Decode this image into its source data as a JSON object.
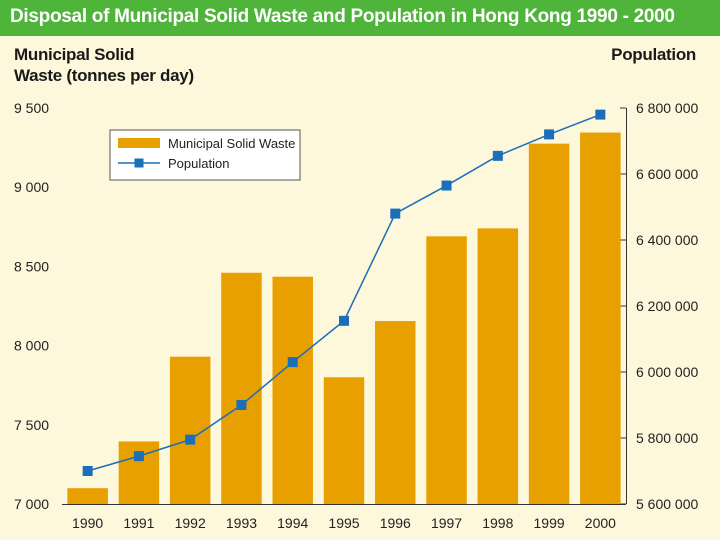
{
  "chart_data": {
    "type": "bar+line",
    "title": "Disposal of Municipal Solid Waste and Population in Hong Kong 1990 - 2000",
    "left_axis_title_line1": "Municipal Solid",
    "left_axis_title_line2": "Waste (tonnes per day)",
    "right_axis_title": "Population",
    "categories": [
      "1990",
      "1991",
      "1992",
      "1993",
      "1994",
      "1995",
      "1996",
      "1997",
      "1998",
      "1999",
      "2000"
    ],
    "series": [
      {
        "name": "Municipal Solid Waste",
        "type": "bar",
        "axis": "left",
        "color": "#e8a000",
        "values": [
          7100,
          7395,
          7930,
          8460,
          8435,
          7800,
          8155,
          8690,
          8740,
          9275,
          9345
        ]
      },
      {
        "name": "Population",
        "type": "line",
        "axis": "right",
        "color": "#1a6fb8",
        "values": [
          5700000,
          5745000,
          5795000,
          5900000,
          6030000,
          6155000,
          6480000,
          6565000,
          6655000,
          6720000,
          6780000
        ]
      }
    ],
    "left_axis": {
      "ylim": [
        7000,
        9500
      ],
      "ticks": [
        7000,
        7500,
        8000,
        8500,
        9000,
        9500
      ],
      "tick_labels": [
        "7 000",
        "7 500",
        "8 000",
        "8 500",
        "9 000",
        "9 500"
      ]
    },
    "right_axis": {
      "ylim": [
        5600000,
        6800000
      ],
      "ticks": [
        5600000,
        5800000,
        6000000,
        6200000,
        6400000,
        6600000,
        6800000
      ],
      "tick_labels": [
        "5 600 000",
        "5 800 000",
        "6 000 000",
        "6 200 000",
        "6 400 000",
        "6 600 000",
        "6 800 000"
      ]
    },
    "legend": {
      "placement": "top-left",
      "entries": [
        "Municipal Solid Waste",
        "Population"
      ]
    }
  },
  "colors": {
    "title_bar": "#4fb43a",
    "background": "#fdf8dc",
    "bar": "#e8a000",
    "line": "#1a6fb8"
  }
}
